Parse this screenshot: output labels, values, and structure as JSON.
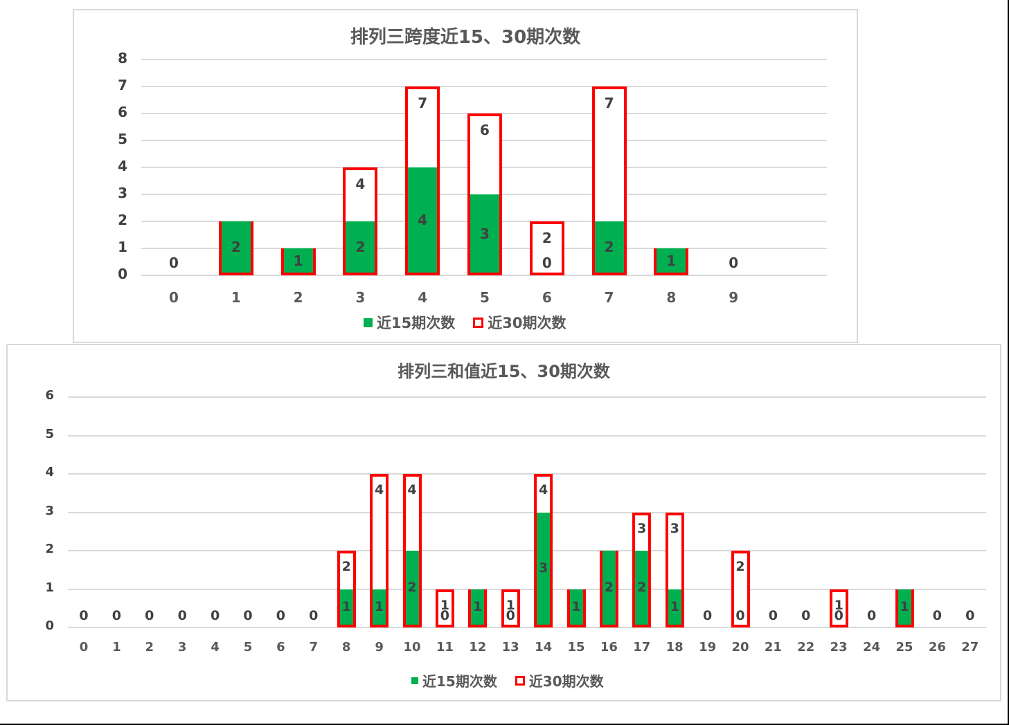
{
  "colors": {
    "green": "#00b050",
    "red": "#ff0000",
    "grid": "#d9d9d9",
    "text": "#595959"
  },
  "chart_data": [
    {
      "type": "bar",
      "title": "排列三跨度近15、30期次数",
      "categories": [
        "0",
        "1",
        "2",
        "3",
        "4",
        "5",
        "6",
        "7",
        "8",
        "9"
      ],
      "series": [
        {
          "name": "近15期次数",
          "values": [
            0,
            2,
            1,
            2,
            4,
            3,
            0,
            2,
            1,
            0
          ]
        },
        {
          "name": "近30期次数",
          "values": [
            0,
            2,
            1,
            4,
            7,
            6,
            2,
            7,
            1,
            0
          ]
        }
      ],
      "ylim": [
        0,
        8
      ],
      "yticks": [
        "0",
        "1",
        "2",
        "3",
        "4",
        "5",
        "6",
        "7",
        "8"
      ],
      "grid": true,
      "legend_position": "bottom"
    },
    {
      "type": "bar",
      "title": "排列三和值近15、30期次数",
      "categories": [
        "0",
        "1",
        "2",
        "3",
        "4",
        "5",
        "6",
        "7",
        "8",
        "9",
        "10",
        "11",
        "12",
        "13",
        "14",
        "15",
        "16",
        "17",
        "18",
        "19",
        "20",
        "21",
        "22",
        "23",
        "24",
        "25",
        "26",
        "27"
      ],
      "series": [
        {
          "name": "近15期次数",
          "values": [
            0,
            0,
            0,
            0,
            0,
            0,
            0,
            0,
            1,
            1,
            2,
            0,
            1,
            0,
            3,
            1,
            2,
            2,
            1,
            0,
            0,
            0,
            0,
            0,
            0,
            1,
            0,
            0
          ]
        },
        {
          "name": "近30期次数",
          "values": [
            0,
            0,
            0,
            0,
            0,
            0,
            0,
            0,
            2,
            4,
            4,
            1,
            1,
            1,
            4,
            1,
            2,
            3,
            3,
            0,
            2,
            0,
            0,
            1,
            0,
            1,
            0,
            0
          ]
        }
      ],
      "ylim": [
        0,
        6
      ],
      "yticks": [
        "0",
        "1",
        "2",
        "3",
        "4",
        "5",
        "6"
      ],
      "grid": true,
      "legend_position": "bottom"
    }
  ],
  "charts": {
    "top": {
      "title": "排列三跨度近15、30期次数",
      "legend15": "近15期次数",
      "legend30": "近30期次数"
    },
    "bottom": {
      "title": "排列三和值近15、30期次数",
      "legend15": "近15期次数",
      "legend30": "近30期次数"
    }
  }
}
